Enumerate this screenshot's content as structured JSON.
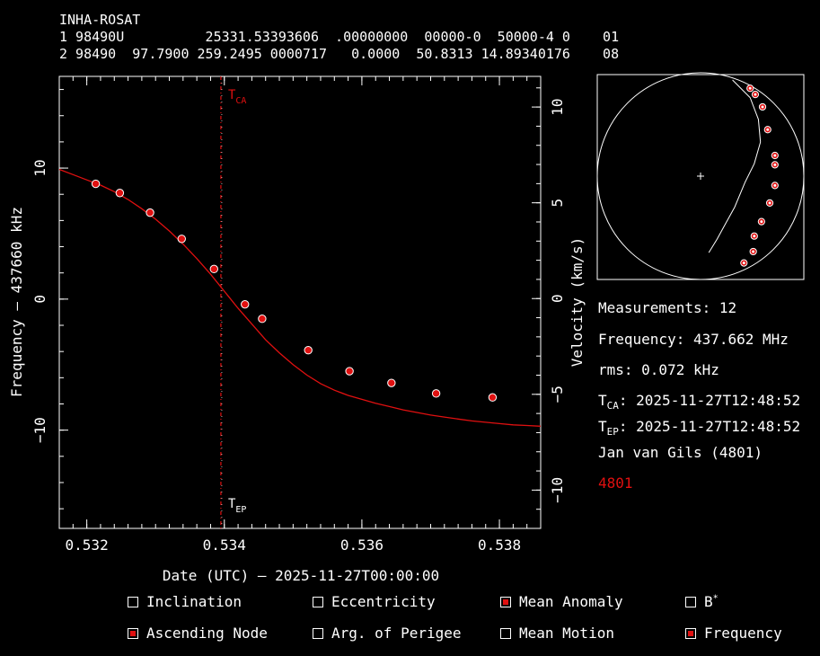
{
  "tle": {
    "name": "INHA-ROSAT",
    "line1": "1 98490U          25331.53393606  .00000000  00000-0  50000-4 0    01",
    "line2": "2 98490  97.7900 259.2495 0000717   0.0000  50.8313 14.89340176    08"
  },
  "colors": {
    "curve": "#e01010",
    "background": "#000000",
    "axes": "#ffffff"
  },
  "chart_data": {
    "type": "line",
    "xlabel": "Date (UTC) — 2025-11-27T00:00:00",
    "ylabel": "Frequency — 437660 kHz",
    "y2label": "Velocity (km/s)",
    "xlim": [
      0.5316,
      0.5386
    ],
    "ylim": [
      -17.5,
      17.0
    ],
    "y2lim": [
      -12.0,
      11.6
    ],
    "xticks": [
      "0.532",
      "0.534",
      "0.536",
      "0.538"
    ],
    "xtick_values": [
      0.532,
      0.534,
      0.536,
      0.538
    ],
    "yticks": [
      "10",
      "0",
      "−10"
    ],
    "ytick_values": [
      10,
      0,
      -10
    ],
    "y2ticks": [
      "10",
      "5",
      "0",
      "−5",
      "−10"
    ],
    "y2tick_values": [
      10,
      5,
      0,
      -5,
      -10
    ],
    "markers": [
      {
        "label": "T",
        "sub": "CA",
        "x": 0.53395
      },
      {
        "label": "T",
        "sub": "EP",
        "x": 0.53395
      }
    ],
    "curve": {
      "x": [
        0.5316,
        0.5318,
        0.532,
        0.5322,
        0.5324,
        0.5326,
        0.5328,
        0.533,
        0.5332,
        0.5334,
        0.5336,
        0.5338,
        0.534,
        0.5342,
        0.5344,
        0.5346,
        0.5348,
        0.535,
        0.5352,
        0.5354,
        0.5356,
        0.5358,
        0.536,
        0.5362,
        0.5364,
        0.5366,
        0.5368,
        0.537,
        0.5372,
        0.5374,
        0.5376,
        0.5378,
        0.538,
        0.5382,
        0.5384,
        0.5386
      ],
      "y": [
        9.9,
        9.5,
        9.1,
        8.7,
        8.2,
        7.6,
        6.9,
        6.1,
        5.2,
        4.2,
        3.1,
        1.9,
        0.6,
        -0.7,
        -1.9,
        -3.1,
        -4.1,
        -5.0,
        -5.8,
        -6.45,
        -6.95,
        -7.35,
        -7.65,
        -7.95,
        -8.2,
        -8.45,
        -8.65,
        -8.85,
        -9.0,
        -9.15,
        -9.3,
        -9.4,
        -9.5,
        -9.6,
        -9.65,
        -9.7
      ]
    },
    "points": {
      "x": [
        0.53213,
        0.53248,
        0.53292,
        0.53338,
        0.53385,
        0.5343,
        0.53455,
        0.53522,
        0.53582,
        0.53643,
        0.53708,
        0.5379
      ],
      "y": [
        8.8,
        8.1,
        6.6,
        4.6,
        2.3,
        -0.4,
        -1.5,
        -3.9,
        -5.5,
        -6.4,
        -7.2,
        -7.5
      ]
    }
  },
  "orbit": {
    "track": [
      [
        0.31,
        0.93
      ],
      [
        0.48,
        0.76
      ],
      [
        0.56,
        0.55
      ],
      [
        0.58,
        0.33
      ],
      [
        0.52,
        0.12
      ],
      [
        0.43,
        -0.06
      ],
      [
        0.33,
        -0.3
      ],
      [
        0.22,
        -0.5
      ],
      [
        0.16,
        -0.61
      ],
      [
        0.08,
        -0.74
      ]
    ],
    "points": [
      [
        0.48,
        0.85
      ],
      [
        0.53,
        0.79
      ],
      [
        0.6,
        0.67
      ],
      [
        0.65,
        0.45
      ],
      [
        0.72,
        0.2
      ],
      [
        0.72,
        0.11
      ],
      [
        0.72,
        -0.09
      ],
      [
        0.67,
        -0.26
      ],
      [
        0.59,
        -0.44
      ],
      [
        0.52,
        -0.58
      ],
      [
        0.51,
        -0.73
      ],
      [
        0.42,
        -0.84
      ]
    ]
  },
  "info": {
    "measurements": "Measurements: 12",
    "frequency": "Frequency: 437.662 MHz",
    "rms": "rms: 0.072 kHz",
    "tca_label": "T",
    "tca_sub": "CA",
    "tca_value": ": 2025-11-27T12:48:52",
    "tep_label": "T",
    "tep_sub": "EP",
    "tep_value": ": 2025-11-27T12:48:52",
    "observer": "Jan van Gils (4801)",
    "station": "4801"
  },
  "options": [
    {
      "label": "Inclination",
      "checked": false
    },
    {
      "label": "Eccentricity",
      "checked": false
    },
    {
      "label": "Mean Anomaly",
      "checked": true
    },
    {
      "label": "B",
      "sup": "*",
      "checked": false
    },
    {
      "label": "Ascending Node",
      "checked": true
    },
    {
      "label": "Arg. of Perigee",
      "checked": false
    },
    {
      "label": "Mean Motion",
      "checked": false
    },
    {
      "label": "Frequency",
      "checked": true
    }
  ]
}
